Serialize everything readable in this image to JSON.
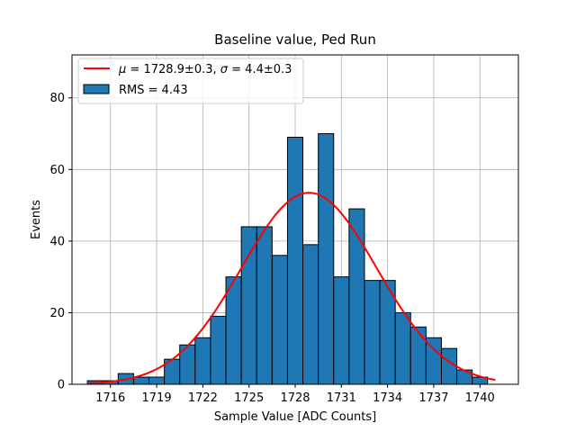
{
  "chart_data": {
    "type": "bar",
    "title": "Baseline value, Ped Run",
    "xlabel": "Sample Value [ADC Counts]",
    "ylabel": "Events",
    "xlim": [
      1713.5,
      1742.5
    ],
    "ylim": [
      0,
      92
    ],
    "xticks": [
      1716,
      1719,
      1722,
      1725,
      1728,
      1731,
      1734,
      1737,
      1740
    ],
    "yticks": [
      0,
      20,
      40,
      60,
      80
    ],
    "grid": true,
    "legend_position": "upper-left",
    "bin_width": 1,
    "bins": [
      1715,
      1716,
      1717,
      1718,
      1719,
      1720,
      1721,
      1722,
      1723,
      1724,
      1725,
      1726,
      1727,
      1728,
      1729,
      1730,
      1731,
      1732,
      1733,
      1734,
      1735,
      1736,
      1737,
      1738,
      1739,
      1740
    ],
    "counts": [
      1,
      1,
      3,
      2,
      2,
      7,
      11,
      13,
      19,
      30,
      44,
      44,
      36,
      69,
      39,
      70,
      30,
      49,
      29,
      29,
      20,
      16,
      13,
      10,
      4,
      2
    ],
    "series": [
      {
        "kind": "histogram",
        "label": "RMS = 4.43",
        "color": "#1f77b4",
        "edge_color": "#000000"
      },
      {
        "kind": "gaussian-fit",
        "label_mu_symbol": "μ",
        "label_mu_text": " = 1728.9±0.3, ",
        "label_sigma_symbol": "σ",
        "label_sigma_text": " = 4.4±0.3",
        "color": "#ff0000",
        "mu": 1728.9,
        "sigma": 4.4,
        "amplitude": 53.5,
        "x_range": [
          1714.5,
          1741
        ]
      }
    ]
  }
}
